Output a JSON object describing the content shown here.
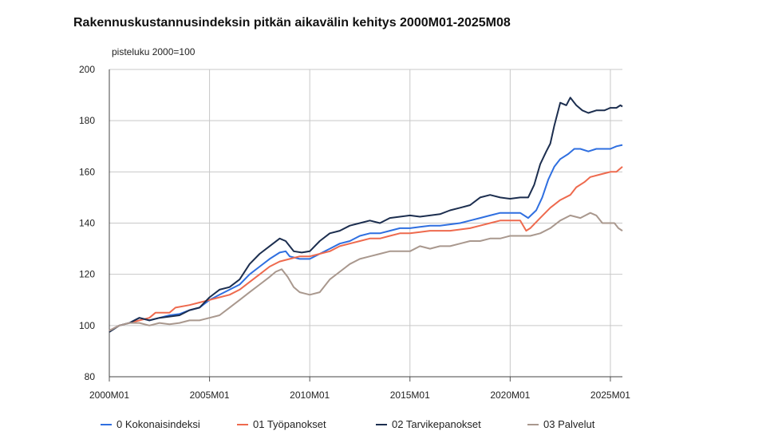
{
  "chart_data": {
    "type": "line",
    "title": "Rakennuskustannusindeksin pitkän aikavälin kehitys 2000M01-2025M08",
    "ylabel": "pisteluku 2000=100",
    "ylim": [
      80,
      200
    ],
    "yticks": [
      80,
      100,
      120,
      140,
      160,
      180,
      200
    ],
    "xlim": [
      2000.0,
      2025.6
    ],
    "xticks": [
      {
        "value": 2000,
        "label": "2000M01"
      },
      {
        "value": 2005,
        "label": "2005M01"
      },
      {
        "value": 2010,
        "label": "2010M01"
      },
      {
        "value": 2015,
        "label": "2015M01"
      },
      {
        "value": 2020,
        "label": "2020M01"
      },
      {
        "value": 2025,
        "label": "2025M01"
      }
    ],
    "grid": true,
    "legend_position": "bottom",
    "series": [
      {
        "name": "0 Kokonaisindeksi",
        "color": "#2f6fe0",
        "points": [
          [
            2000.0,
            98
          ],
          [
            2000.5,
            100
          ],
          [
            2001.0,
            101
          ],
          [
            2001.5,
            103
          ],
          [
            2002.0,
            102
          ],
          [
            2002.5,
            103
          ],
          [
            2003.0,
            104
          ],
          [
            2003.5,
            104.5
          ],
          [
            2004.0,
            106
          ],
          [
            2004.5,
            107
          ],
          [
            2005.0,
            110
          ],
          [
            2005.5,
            112
          ],
          [
            2006.0,
            114
          ],
          [
            2006.5,
            116
          ],
          [
            2007.0,
            120
          ],
          [
            2007.5,
            123
          ],
          [
            2008.0,
            126
          ],
          [
            2008.5,
            128.5
          ],
          [
            2008.8,
            129
          ],
          [
            2009.0,
            127
          ],
          [
            2009.5,
            126
          ],
          [
            2010.0,
            126
          ],
          [
            2010.5,
            128
          ],
          [
            2011.0,
            130
          ],
          [
            2011.5,
            132
          ],
          [
            2012.0,
            133
          ],
          [
            2012.5,
            135
          ],
          [
            2013.0,
            136
          ],
          [
            2013.5,
            136
          ],
          [
            2014.0,
            137
          ],
          [
            2014.5,
            138
          ],
          [
            2015.0,
            138
          ],
          [
            2015.5,
            138.5
          ],
          [
            2016.0,
            139
          ],
          [
            2016.5,
            139
          ],
          [
            2017.0,
            139.5
          ],
          [
            2017.5,
            140
          ],
          [
            2018.0,
            141
          ],
          [
            2018.5,
            142
          ],
          [
            2019.0,
            143
          ],
          [
            2019.5,
            144
          ],
          [
            2020.0,
            144
          ],
          [
            2020.5,
            144
          ],
          [
            2020.9,
            142
          ],
          [
            2021.3,
            145
          ],
          [
            2021.6,
            150
          ],
          [
            2021.9,
            157
          ],
          [
            2022.2,
            162
          ],
          [
            2022.5,
            165
          ],
          [
            2022.9,
            167
          ],
          [
            2023.2,
            169
          ],
          [
            2023.5,
            169
          ],
          [
            2023.9,
            168
          ],
          [
            2024.3,
            169
          ],
          [
            2024.7,
            169
          ],
          [
            2025.0,
            169
          ],
          [
            2025.3,
            170
          ],
          [
            2025.6,
            170.5
          ]
        ]
      },
      {
        "name": "01 Työpanokset",
        "color": "#ee6a4e",
        "points": [
          [
            2000.0,
            98
          ],
          [
            2000.5,
            100
          ],
          [
            2001.0,
            101
          ],
          [
            2001.5,
            102
          ],
          [
            2002.0,
            103
          ],
          [
            2002.3,
            105
          ],
          [
            2003.0,
            105
          ],
          [
            2003.3,
            107
          ],
          [
            2004.0,
            108
          ],
          [
            2004.5,
            109
          ],
          [
            2005.0,
            110
          ],
          [
            2005.5,
            111
          ],
          [
            2006.0,
            112
          ],
          [
            2006.5,
            114
          ],
          [
            2007.0,
            117
          ],
          [
            2007.5,
            120
          ],
          [
            2008.0,
            123
          ],
          [
            2008.5,
            125
          ],
          [
            2009.0,
            126
          ],
          [
            2009.5,
            127
          ],
          [
            2010.0,
            127
          ],
          [
            2010.5,
            128
          ],
          [
            2011.0,
            129
          ],
          [
            2011.5,
            131
          ],
          [
            2012.0,
            132
          ],
          [
            2012.5,
            133
          ],
          [
            2013.0,
            134
          ],
          [
            2013.5,
            134
          ],
          [
            2014.0,
            135
          ],
          [
            2014.5,
            136
          ],
          [
            2015.0,
            136
          ],
          [
            2015.5,
            136.5
          ],
          [
            2016.0,
            137
          ],
          [
            2016.5,
            137
          ],
          [
            2017.0,
            137
          ],
          [
            2017.5,
            137.5
          ],
          [
            2018.0,
            138
          ],
          [
            2018.5,
            139
          ],
          [
            2019.0,
            140
          ],
          [
            2019.5,
            141
          ],
          [
            2020.0,
            141
          ],
          [
            2020.5,
            141
          ],
          [
            2020.8,
            137
          ],
          [
            2021.0,
            138
          ],
          [
            2021.5,
            142
          ],
          [
            2022.0,
            146
          ],
          [
            2022.5,
            149
          ],
          [
            2023.0,
            151
          ],
          [
            2023.3,
            154
          ],
          [
            2023.7,
            156
          ],
          [
            2024.0,
            158
          ],
          [
            2024.5,
            159
          ],
          [
            2025.0,
            160
          ],
          [
            2025.3,
            160
          ],
          [
            2025.6,
            162
          ]
        ]
      },
      {
        "name": "02 Tarvikepanokset",
        "color": "#1c2e4f",
        "points": [
          [
            2000.0,
            97.5
          ],
          [
            2000.5,
            100
          ],
          [
            2001.0,
            101
          ],
          [
            2001.5,
            103
          ],
          [
            2002.0,
            102
          ],
          [
            2002.5,
            103
          ],
          [
            2003.0,
            103.5
          ],
          [
            2003.5,
            104
          ],
          [
            2004.0,
            106
          ],
          [
            2004.5,
            107
          ],
          [
            2005.0,
            111
          ],
          [
            2005.5,
            114
          ],
          [
            2006.0,
            115
          ],
          [
            2006.5,
            118
          ],
          [
            2007.0,
            124
          ],
          [
            2007.5,
            128
          ],
          [
            2008.0,
            131
          ],
          [
            2008.5,
            134
          ],
          [
            2008.8,
            133
          ],
          [
            2009.2,
            129
          ],
          [
            2009.6,
            128.5
          ],
          [
            2010.0,
            129
          ],
          [
            2010.5,
            133
          ],
          [
            2011.0,
            136
          ],
          [
            2011.5,
            137
          ],
          [
            2012.0,
            139
          ],
          [
            2012.5,
            140
          ],
          [
            2013.0,
            141
          ],
          [
            2013.5,
            140
          ],
          [
            2014.0,
            142
          ],
          [
            2014.5,
            142.5
          ],
          [
            2015.0,
            143
          ],
          [
            2015.5,
            142.5
          ],
          [
            2016.0,
            143
          ],
          [
            2016.5,
            143.5
          ],
          [
            2017.0,
            145
          ],
          [
            2017.5,
            146
          ],
          [
            2018.0,
            147
          ],
          [
            2018.5,
            150
          ],
          [
            2019.0,
            151
          ],
          [
            2019.5,
            150
          ],
          [
            2020.0,
            149.5
          ],
          [
            2020.5,
            150
          ],
          [
            2020.9,
            150
          ],
          [
            2021.2,
            155
          ],
          [
            2021.5,
            163
          ],
          [
            2021.8,
            168
          ],
          [
            2022.0,
            171
          ],
          [
            2022.2,
            178
          ],
          [
            2022.5,
            187
          ],
          [
            2022.8,
            186
          ],
          [
            2023.0,
            189
          ],
          [
            2023.3,
            186
          ],
          [
            2023.6,
            184
          ],
          [
            2023.9,
            183
          ],
          [
            2024.3,
            184
          ],
          [
            2024.7,
            184
          ],
          [
            2025.0,
            185
          ],
          [
            2025.3,
            185
          ],
          [
            2025.5,
            186
          ],
          [
            2025.6,
            185.5
          ]
        ]
      },
      {
        "name": "03 Palvelut",
        "color": "#a9988e",
        "points": [
          [
            2000.0,
            98
          ],
          [
            2000.5,
            100
          ],
          [
            2001.0,
            101
          ],
          [
            2001.5,
            101
          ],
          [
            2002.0,
            100
          ],
          [
            2002.5,
            101
          ],
          [
            2003.0,
            100.5
          ],
          [
            2003.5,
            101
          ],
          [
            2004.0,
            102
          ],
          [
            2004.5,
            102
          ],
          [
            2005.0,
            103
          ],
          [
            2005.5,
            104
          ],
          [
            2006.0,
            107
          ],
          [
            2006.5,
            110
          ],
          [
            2007.0,
            113
          ],
          [
            2007.5,
            116
          ],
          [
            2008.0,
            119
          ],
          [
            2008.3,
            121
          ],
          [
            2008.6,
            122
          ],
          [
            2008.9,
            119
          ],
          [
            2009.2,
            115
          ],
          [
            2009.5,
            113
          ],
          [
            2010.0,
            112
          ],
          [
            2010.5,
            113
          ],
          [
            2011.0,
            118
          ],
          [
            2011.5,
            121
          ],
          [
            2012.0,
            124
          ],
          [
            2012.5,
            126
          ],
          [
            2013.0,
            127
          ],
          [
            2013.5,
            128
          ],
          [
            2014.0,
            129
          ],
          [
            2014.5,
            129
          ],
          [
            2015.0,
            129
          ],
          [
            2015.5,
            131
          ],
          [
            2016.0,
            130
          ],
          [
            2016.5,
            131
          ],
          [
            2017.0,
            131
          ],
          [
            2017.5,
            132
          ],
          [
            2018.0,
            133
          ],
          [
            2018.5,
            133
          ],
          [
            2019.0,
            134
          ],
          [
            2019.5,
            134
          ],
          [
            2020.0,
            135
          ],
          [
            2020.5,
            135
          ],
          [
            2021.0,
            135
          ],
          [
            2021.5,
            136
          ],
          [
            2022.0,
            138
          ],
          [
            2022.5,
            141
          ],
          [
            2023.0,
            143
          ],
          [
            2023.5,
            142
          ],
          [
            2024.0,
            144
          ],
          [
            2024.3,
            143
          ],
          [
            2024.6,
            140
          ],
          [
            2025.0,
            140
          ],
          [
            2025.2,
            140
          ],
          [
            2025.4,
            138
          ],
          [
            2025.6,
            137
          ]
        ]
      }
    ]
  }
}
